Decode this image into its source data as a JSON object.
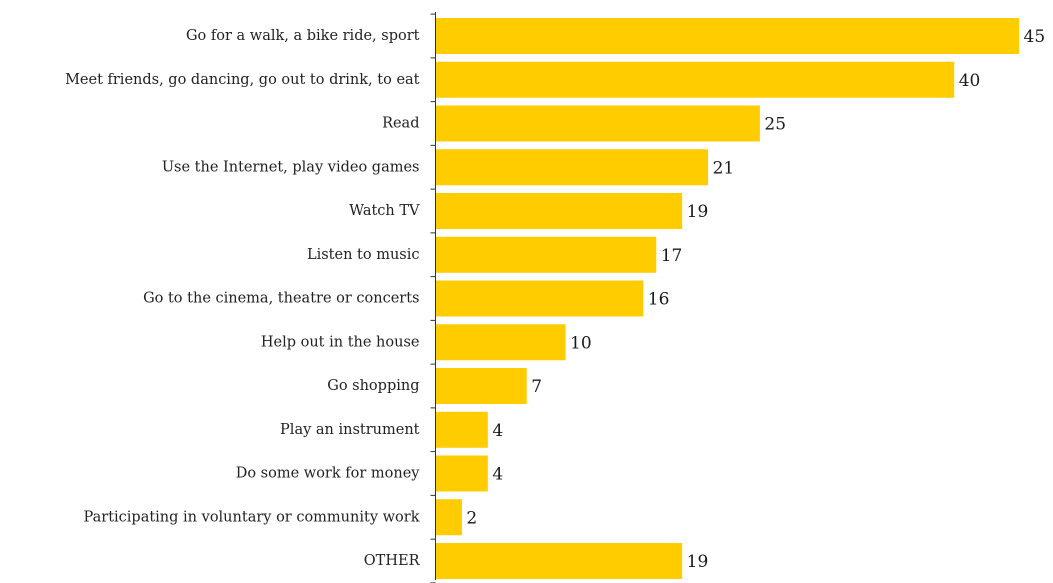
{
  "chart_data": {
    "type": "bar",
    "orientation": "horizontal",
    "categories": [
      "Go for a walk, a bike ride, sport",
      "Meet friends, go dancing, go out to drink, to eat",
      "Read",
      "Use the Internet, play video games",
      "Watch TV",
      "Listen to music",
      "Go to the cinema, theatre or concerts",
      "Help out in the house",
      "Go shopping",
      "Play an instrument",
      "Do some work for money",
      "Participating in voluntary or community work",
      "OTHER"
    ],
    "values": [
      45,
      40,
      25,
      21,
      19,
      17,
      16,
      10,
      7,
      4,
      4,
      2,
      19
    ],
    "title": "",
    "xlabel": "",
    "ylabel": "",
    "xlim": [
      0,
      45
    ],
    "grid": false,
    "legend": "none",
    "bar_color": "#FFCC00",
    "axis_color": "#333333"
  }
}
